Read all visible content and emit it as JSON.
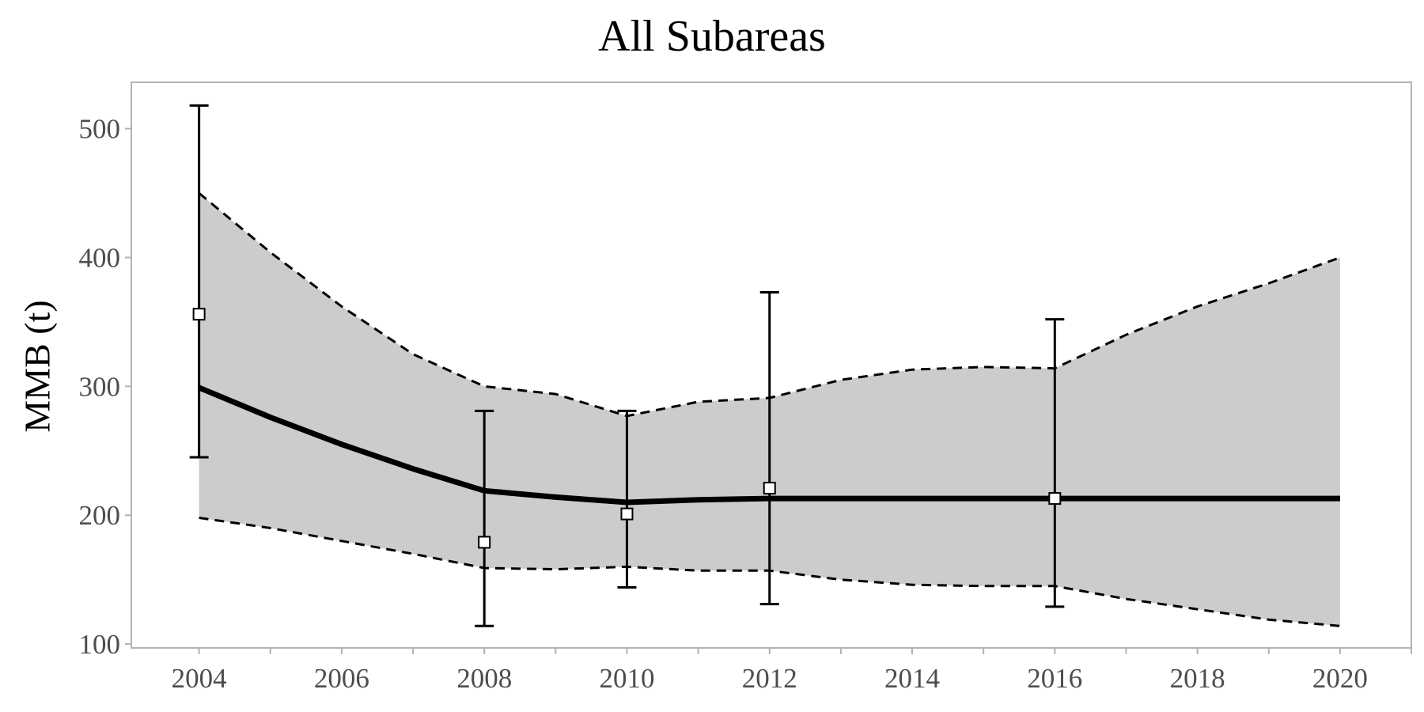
{
  "chart_data": {
    "type": "line",
    "title": "All Subareas",
    "xlabel": "",
    "ylabel": "MMB (t)",
    "xlim": [
      2003.05,
      2021
    ],
    "ylim": [
      97,
      536
    ],
    "x_ticks": [
      2004,
      2006,
      2008,
      2010,
      2012,
      2014,
      2016,
      2018,
      2020
    ],
    "y_ticks": [
      100,
      200,
      300,
      400,
      500
    ],
    "grid": false,
    "legend": "none",
    "band": {
      "x": [
        2004,
        2005,
        2006,
        2007,
        2008,
        2009,
        2010,
        2011,
        2012,
        2013,
        2014,
        2015,
        2016,
        2017,
        2018,
        2019,
        2020
      ],
      "upper": [
        450,
        404,
        362,
        325,
        300,
        294,
        277,
        288,
        291,
        305,
        313,
        315,
        314,
        340,
        362,
        380,
        400
      ],
      "lower": [
        198,
        190,
        180,
        170,
        159,
        158,
        160,
        157,
        157,
        150,
        146,
        145,
        145,
        135,
        127,
        119,
        114
      ]
    },
    "series": [
      {
        "x": [
          2004,
          2005,
          2006,
          2007,
          2008,
          2009,
          2010,
          2011,
          2012,
          2013,
          2014,
          2015,
          2016,
          2017,
          2018,
          2019,
          2020
        ],
        "values": [
          299,
          276,
          255,
          236,
          219,
          214,
          210,
          212,
          213,
          213,
          213,
          213,
          213,
          213,
          213,
          213,
          213
        ]
      }
    ],
    "observations": [
      {
        "x": 2004,
        "y": 356,
        "lower": 245,
        "upper": 518
      },
      {
        "x": 2008,
        "y": 179,
        "lower": 114,
        "upper": 281
      },
      {
        "x": 2010,
        "y": 201,
        "lower": 144,
        "upper": 281
      },
      {
        "x": 2012,
        "y": 221,
        "lower": 131,
        "upper": 373
      },
      {
        "x": 2016,
        "y": 213,
        "lower": 129,
        "upper": 352
      }
    ],
    "colors": {
      "band": "#cccccc",
      "line": "#000000",
      "panel_border": "#b3b3b3",
      "tick_text": "#4d4d4d",
      "marker_fill": "#ffffff"
    }
  }
}
